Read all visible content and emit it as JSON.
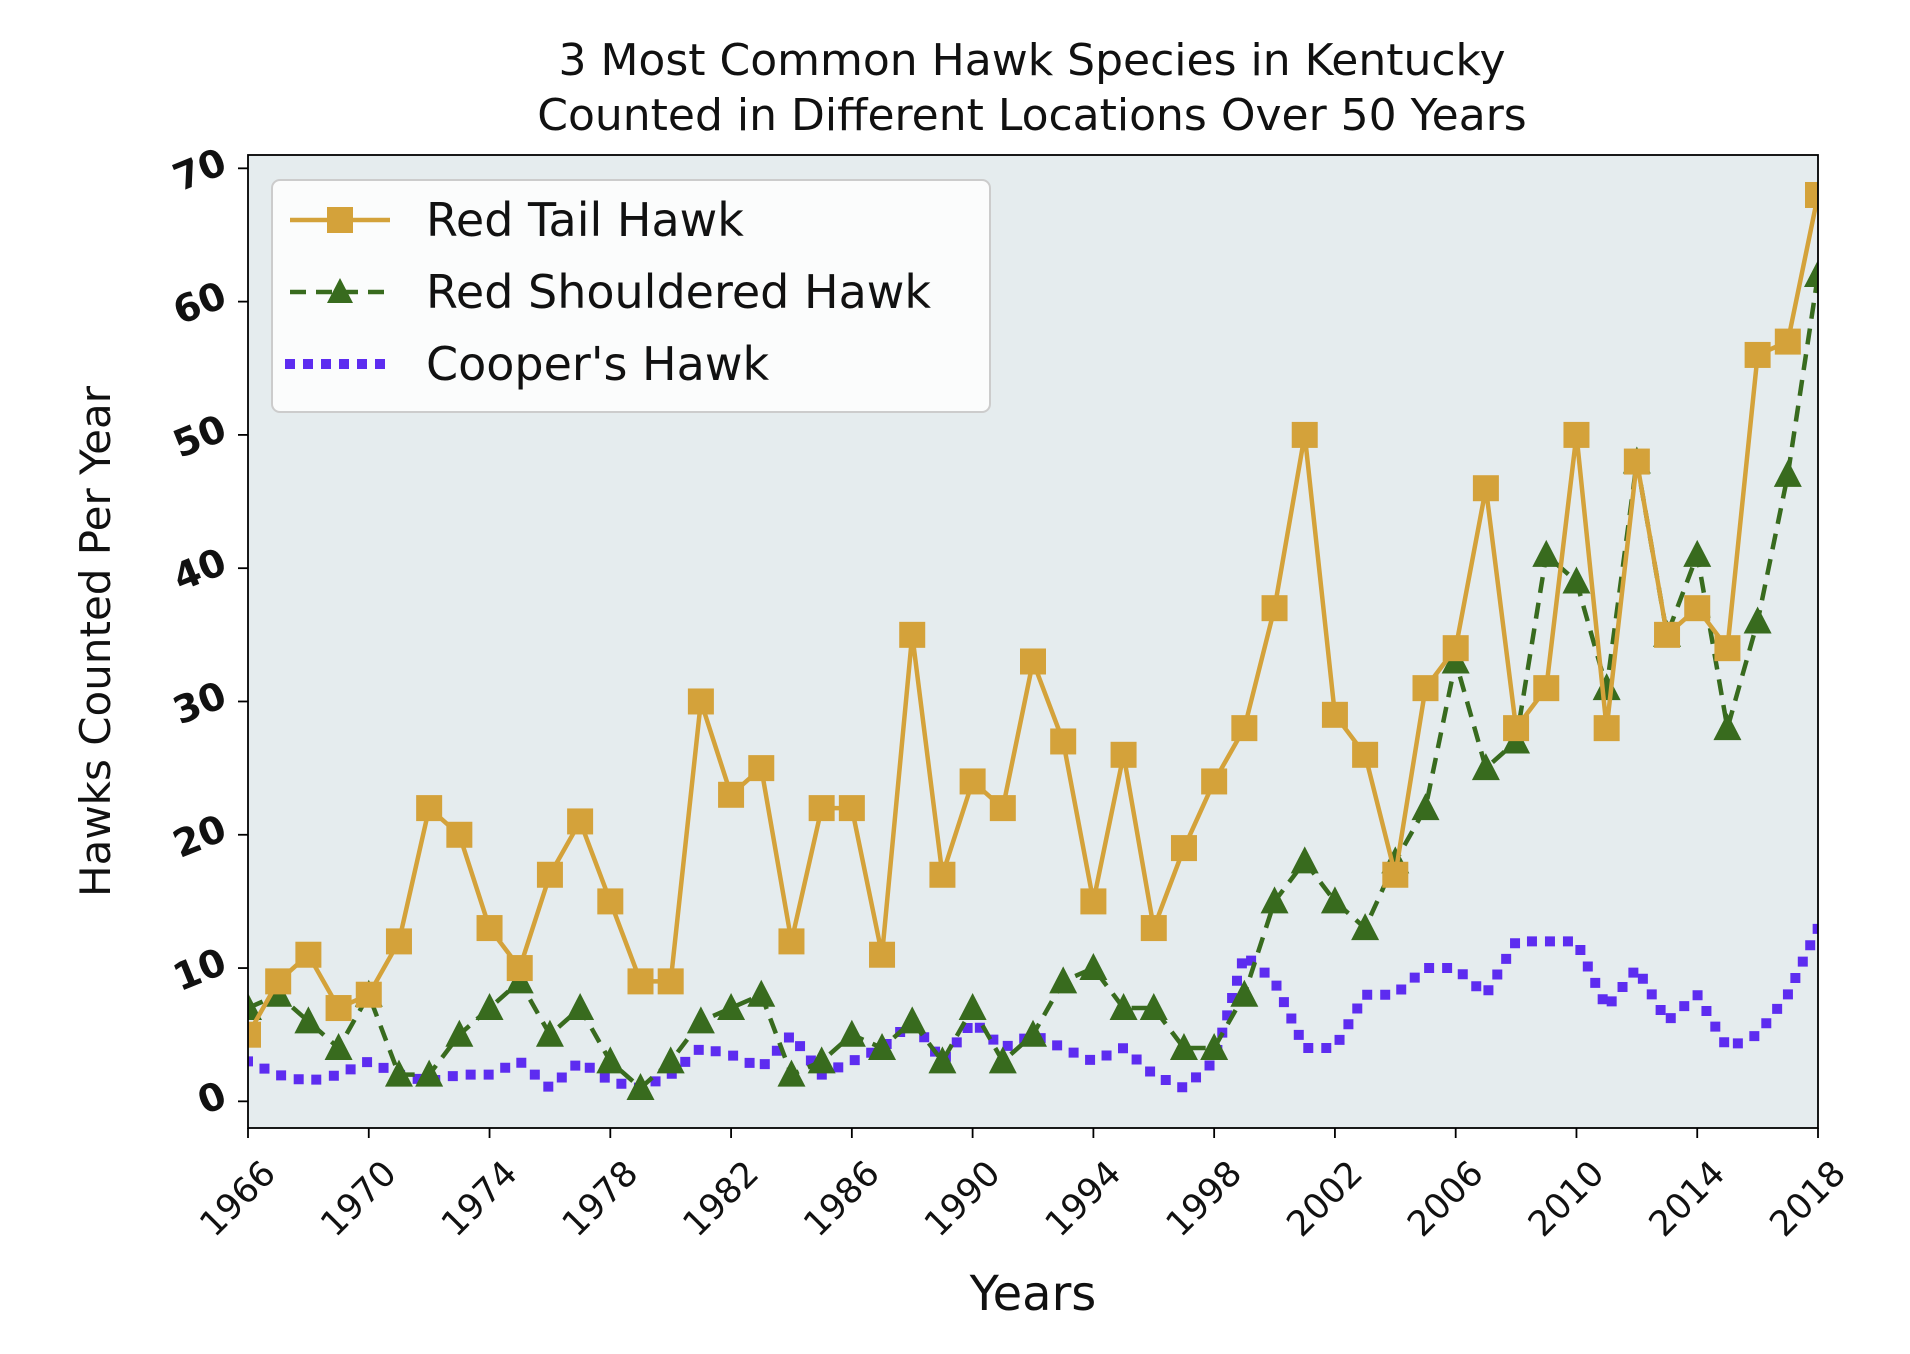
{
  "chart_data": {
    "type": "line",
    "title_lines": [
      "3 Most Common Hawk Species in Kentucky",
      "Counted in Different Locations Over 50 Years"
    ],
    "xlabel": "Years",
    "ylabel": "Hawks Counted Per Year",
    "xlim": [
      1966,
      2018
    ],
    "ylim": [
      -2,
      71
    ],
    "xticks": [
      1966,
      1970,
      1974,
      1978,
      1982,
      1986,
      1990,
      1994,
      1998,
      2002,
      2006,
      2010,
      2014,
      2018
    ],
    "yticks": [
      0,
      10,
      20,
      30,
      40,
      50,
      60,
      70
    ],
    "grid": false,
    "legend_position": "upper-left",
    "background_color": "#e5ecee",
    "years": [
      1966,
      1967,
      1968,
      1969,
      1970,
      1971,
      1972,
      1973,
      1974,
      1975,
      1976,
      1977,
      1978,
      1979,
      1980,
      1981,
      1982,
      1983,
      1984,
      1985,
      1986,
      1987,
      1988,
      1989,
      1990,
      1991,
      1992,
      1993,
      1994,
      1995,
      1996,
      1997,
      1998,
      1999,
      2000,
      2001,
      2002,
      2003,
      2004,
      2005,
      2006,
      2007,
      2008,
      2009,
      2010,
      2011,
      2012,
      2013,
      2014,
      2015,
      2016,
      2017,
      2018
    ],
    "series": [
      {
        "name": "Red Tail Hawk",
        "color": "#d4a23a",
        "style": "solid",
        "marker": "square",
        "values": [
          5,
          9,
          11,
          7,
          8,
          12,
          22,
          20,
          13,
          10,
          17,
          21,
          15,
          9,
          9,
          30,
          23,
          25,
          12,
          22,
          22,
          11,
          35,
          17,
          24,
          22,
          33,
          27,
          15,
          26,
          13,
          19,
          24,
          28,
          37,
          50,
          29,
          26,
          17,
          31,
          34,
          46,
          28,
          31,
          50,
          28,
          48,
          35,
          37,
          34,
          56,
          57,
          68
        ]
      },
      {
        "name": "Red Shouldered Hawk",
        "color": "#386b1e",
        "style": "dashed",
        "marker": "triangle",
        "values": [
          7,
          8,
          6,
          4,
          8,
          2,
          2,
          5,
          7,
          9,
          5,
          7,
          3,
          1,
          3,
          6,
          7,
          8,
          2,
          3,
          5,
          4,
          6,
          3,
          7,
          3,
          5,
          9,
          10,
          7,
          7,
          4,
          4,
          8,
          15,
          18,
          15,
          13,
          18,
          22,
          33,
          25,
          27,
          41,
          39,
          31,
          48,
          35,
          41,
          28,
          36,
          47,
          62
        ]
      },
      {
        "name": "Cooper's Hawk",
        "color": "#5d2cf0",
        "style": "dotted",
        "marker": "none",
        "values": [
          3,
          2,
          1.5,
          2,
          3,
          2,
          1.5,
          2,
          2,
          3,
          1,
          3,
          1.5,
          1,
          2,
          4,
          3.5,
          2.5,
          5,
          2,
          3,
          4,
          6,
          3,
          6,
          4,
          5,
          4,
          3,
          4,
          2,
          1,
          3,
          11,
          9,
          4,
          4,
          8,
          8,
          10,
          10,
          8,
          12,
          12,
          12,
          7,
          10,
          6,
          8,
          4,
          5,
          8,
          13
        ]
      }
    ]
  }
}
